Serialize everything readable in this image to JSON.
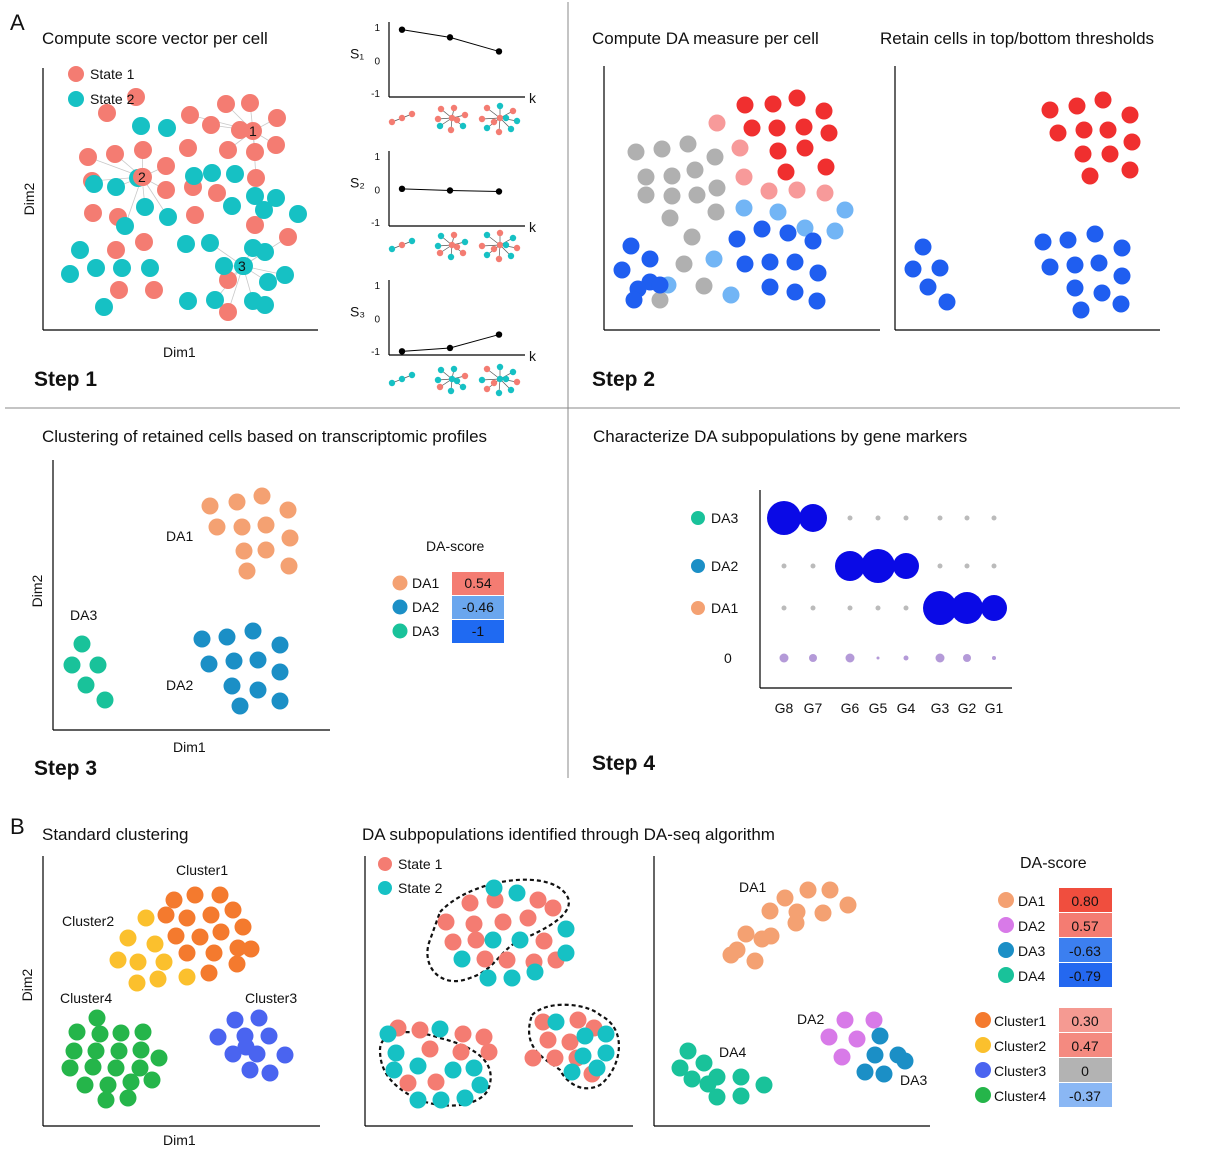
{
  "panel_a": {
    "label": "A",
    "step1": {
      "title": "Compute score vector per cell",
      "legend": [
        "State 1",
        "State 2"
      ],
      "xlabel": "Dim1",
      "ylabel": "Dim2",
      "marked_cells": [
        "1",
        "2",
        "3"
      ],
      "step": "Step 1",
      "score_plots": [
        {
          "label": "S₁",
          "values": [
            0.95,
            0.72,
            0.3
          ],
          "ticks": [
            "1",
            "0",
            "-1"
          ],
          "k": "k"
        },
        {
          "label": "S₂",
          "values": [
            0.05,
            0.0,
            -0.03
          ],
          "ticks": [
            "1",
            "0",
            "-1"
          ],
          "k": "k"
        },
        {
          "label": "S₃",
          "values": [
            -0.95,
            -0.85,
            -0.45
          ],
          "ticks": [
            "1",
            "0",
            "-1"
          ],
          "k": "k"
        }
      ]
    },
    "step2": {
      "title_left": "Compute DA measure per cell",
      "title_right": "Retain cells in top/bottom thresholds",
      "step": "Step 2"
    },
    "step3": {
      "title": "Clustering of retained cells based on transcriptomic profiles",
      "xlabel": "Dim1",
      "ylabel": "Dim2",
      "clusters": [
        "DA1",
        "DA2",
        "DA3"
      ],
      "score_title": "DA-score",
      "scores": [
        {
          "name": "DA1",
          "value": "0.54",
          "dot": "#f4a172",
          "cell": "#f47c72"
        },
        {
          "name": "DA2",
          "value": "-0.46",
          "dot": "#1b8fc6",
          "cell": "#6aa6ee"
        },
        {
          "name": "DA3",
          "value": "-1",
          "dot": "#19c29a",
          "cell": "#1f6af2"
        }
      ],
      "step": "Step 3"
    },
    "step4": {
      "title": "Characterize DA subpopulations by gene markers",
      "rows": [
        {
          "name": "DA3",
          "dot": "#19c29a"
        },
        {
          "name": "DA2",
          "dot": "#1b8fc6"
        },
        {
          "name": "DA1",
          "dot": "#f4a172"
        },
        {
          "name": "0",
          "dot": ""
        }
      ],
      "genes": [
        "G8",
        "G7",
        "G6",
        "G5",
        "G4",
        "G3",
        "G2",
        "G1"
      ],
      "step": "Step 4"
    }
  },
  "panel_b": {
    "label": "B",
    "left_title": "Standard clustering",
    "clusters": [
      "Cluster1",
      "Cluster2",
      "Cluster3",
      "Cluster4"
    ],
    "xlabel": "Dim1",
    "ylabel": "Dim2",
    "middle_title": "DA subpopulations identified through DA-seq algorithm",
    "legend": [
      "State 1",
      "State 2"
    ],
    "da_labels": [
      "DA1",
      "DA2",
      "DA3",
      "DA4"
    ],
    "score_title": "DA-score",
    "da_scores": [
      {
        "name": "DA1",
        "value": "0.80",
        "dot": "#f4a172",
        "cell": "#f04e3e"
      },
      {
        "name": "DA2",
        "value": "0.57",
        "dot": "#d87ae8",
        "cell": "#f47c72"
      },
      {
        "name": "DA3",
        "value": "-0.63",
        "dot": "#1b8fc6",
        "cell": "#3c7ff0"
      },
      {
        "name": "DA4",
        "value": "-0.79",
        "dot": "#19c29a",
        "cell": "#2468f0"
      }
    ],
    "cluster_scores": [
      {
        "name": "Cluster1",
        "value": "0.30",
        "dot": "#f47a2e",
        "cell": "#f59a92"
      },
      {
        "name": "Cluster2",
        "value": "0.47",
        "dot": "#fbc02d",
        "cell": "#f48a80"
      },
      {
        "name": "Cluster3",
        "value": "0",
        "dot": "#4a64f0",
        "cell": "#b3b3b3"
      },
      {
        "name": "Cluster4",
        "value": "-0.37",
        "dot": "#25b54a",
        "cell": "#8ab7f4"
      }
    ]
  },
  "colors": {
    "state1": "#f47c72",
    "state2": "#16c1c4",
    "grey": "#b0b0b0",
    "red": "#f02f2f",
    "light_red": "#f79a9a",
    "blue": "#1f5ef0",
    "light_blue": "#72b5f5",
    "marker_blue": "#0a0ae6",
    "zero_purple": "#b49ad8"
  }
}
